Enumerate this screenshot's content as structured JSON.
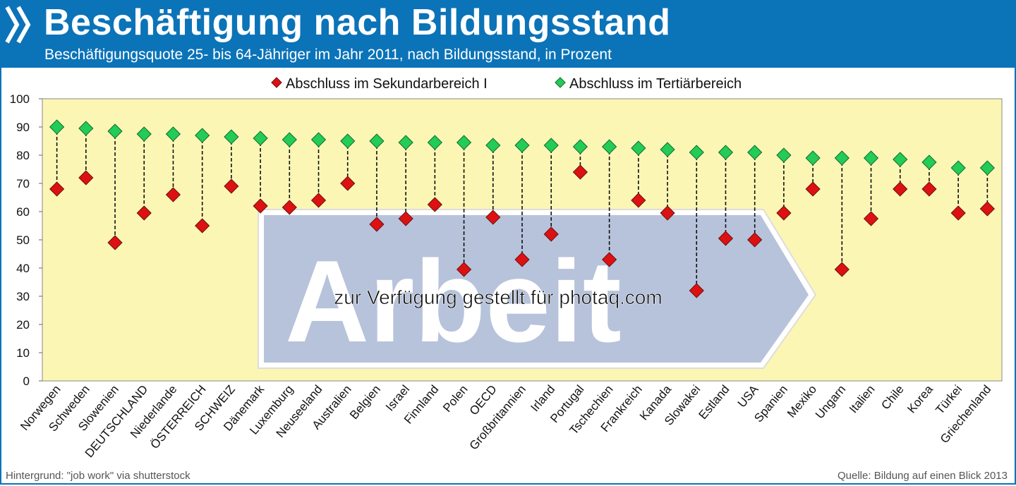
{
  "header": {
    "title": "Beschäftigung nach Bildungsstand",
    "subtitle": "Beschäftigungsquote 25- bis 64-Jähriger im Jahr 2011, nach Bildungsstand, in Prozent"
  },
  "watermark": {
    "sign_text": "Arbeit",
    "overlay_text": "zur Verfügung gestellt für photaq.com"
  },
  "footer": {
    "left": "Hintergrund: \"job work\" via shutterstock",
    "right": "Quelle: Bildung auf einen Blick 2013"
  },
  "colors": {
    "header_bg": "#0b73b8",
    "plot_bg": "#fbf6b4",
    "series_secondary": "#dd1111",
    "series_tertiary": "#22cc55"
  },
  "chart_data": {
    "type": "scatter",
    "title": "Beschäftigung nach Bildungsstand",
    "subtitle": "Beschäftigungsquote 25- bis 64-Jähriger im Jahr 2011, nach Bildungsstand, in Prozent",
    "ylim": [
      0,
      100
    ],
    "yticks": [
      0,
      10,
      20,
      30,
      40,
      50,
      60,
      70,
      80,
      90,
      100
    ],
    "grid": false,
    "legend_position": "top",
    "categories": [
      "Norwegen",
      "Schweden",
      "Slowenien",
      "DEUTSCHLAND",
      "Niederlande",
      "ÖSTERREICH",
      "SCHWEIZ",
      "Dänemark",
      "Luxemburg",
      "Neuseeland",
      "Australien",
      "Belgien",
      "Israel",
      "Finnland",
      "Polen",
      "OECD",
      "Großbritannien",
      "Irland",
      "Portugal",
      "Tschechien",
      "Frankreich",
      "Kanada",
      "Slowakei",
      "Estland",
      "USA",
      "Spanien",
      "Mexiko",
      "Ungarn",
      "Italien",
      "Chile",
      "Korea",
      "Türkei",
      "Griechenland"
    ],
    "series": [
      {
        "name": "Abschluss im Sekundarbereich I",
        "color": "#dd1111",
        "values": [
          68,
          72,
          49,
          59.5,
          66,
          55,
          69,
          62,
          61.5,
          64,
          70,
          55.5,
          57.5,
          62.5,
          39.5,
          58,
          43,
          52,
          74,
          43,
          64,
          59.5,
          32,
          50.5,
          50,
          59.5,
          68,
          39.5,
          57.5,
          68,
          68,
          59.5,
          61
        ]
      },
      {
        "name": "Abschluss im Tertiärbereich",
        "color": "#22cc55",
        "values": [
          90,
          89.5,
          88.5,
          87.5,
          87.5,
          87,
          86.5,
          86,
          85.5,
          85.5,
          85,
          85,
          84.5,
          84.5,
          84.5,
          83.5,
          83.5,
          83.5,
          83,
          83,
          82.5,
          82,
          81,
          81,
          81,
          80,
          79,
          79,
          79,
          78.5,
          77.5,
          75.5,
          75.5
        ]
      }
    ]
  }
}
